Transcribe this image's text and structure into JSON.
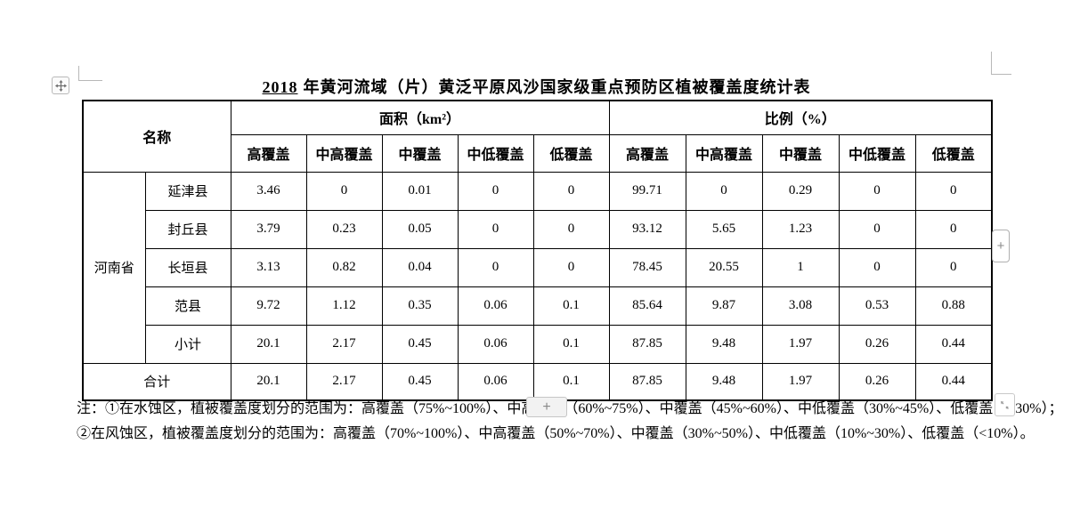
{
  "page": {
    "title_number": "2018",
    "title_text": "年黄河流域（片）黄泛平原风沙国家级重点预防区植被覆盖度统计表"
  },
  "table": {
    "name_header": "名称",
    "area_header": "面积（km²）",
    "ratio_header": "比例（%）",
    "sub_headers": [
      "高覆盖",
      "中高覆盖",
      "中覆盖",
      "中低覆盖",
      "低覆盖"
    ],
    "province": "河南省",
    "rows": [
      {
        "name": "延津县",
        "area": [
          "3.46",
          "0",
          "0.01",
          "0",
          "0"
        ],
        "ratio": [
          "99.71",
          "0",
          "0.29",
          "0",
          "0"
        ]
      },
      {
        "name": "封丘县",
        "area": [
          "3.79",
          "0.23",
          "0.05",
          "0",
          "0"
        ],
        "ratio": [
          "93.12",
          "5.65",
          "1.23",
          "0",
          "0"
        ]
      },
      {
        "name": "长垣县",
        "area": [
          "3.13",
          "0.82",
          "0.04",
          "0",
          "0"
        ],
        "ratio": [
          "78.45",
          "20.55",
          "1",
          "0",
          "0"
        ]
      },
      {
        "name": "范县",
        "area": [
          "9.72",
          "1.12",
          "0.35",
          "0.06",
          "0.1"
        ],
        "ratio": [
          "85.64",
          "9.87",
          "3.08",
          "0.53",
          "0.88"
        ]
      },
      {
        "name": "小计",
        "area": [
          "20.1",
          "2.17",
          "0.45",
          "0.06",
          "0.1"
        ],
        "ratio": [
          "87.85",
          "9.48",
          "1.97",
          "0.26",
          "0.44"
        ]
      }
    ],
    "total_row": {
      "name": "合计",
      "area": [
        "20.1",
        "2.17",
        "0.45",
        "0.06",
        "0.1"
      ],
      "ratio": [
        "87.85",
        "9.48",
        "1.97",
        "0.26",
        "0.44"
      ]
    }
  },
  "notes": {
    "line1": "注：①在水蚀区，植被覆盖度划分的范围为：高覆盖（75%~100%）、中高覆盖（60%~75%）、中覆盖（45%~60%）、中低覆盖（30%~45%）、低覆盖（<30%）；",
    "line2": "②在风蚀区，植被覆盖度划分的范围为：高覆盖（70%~100%）、中高覆盖（50%~70%）、中覆盖（30%~50%）、中低覆盖（10%~30%）、低覆盖（<10%）。"
  },
  "controls": {
    "insert_column_label": "+",
    "insert_row_label": "+",
    "icons": {
      "move_handle": "table-move-handle-icon",
      "resize": "table-resize-diagonal-icon"
    }
  }
}
